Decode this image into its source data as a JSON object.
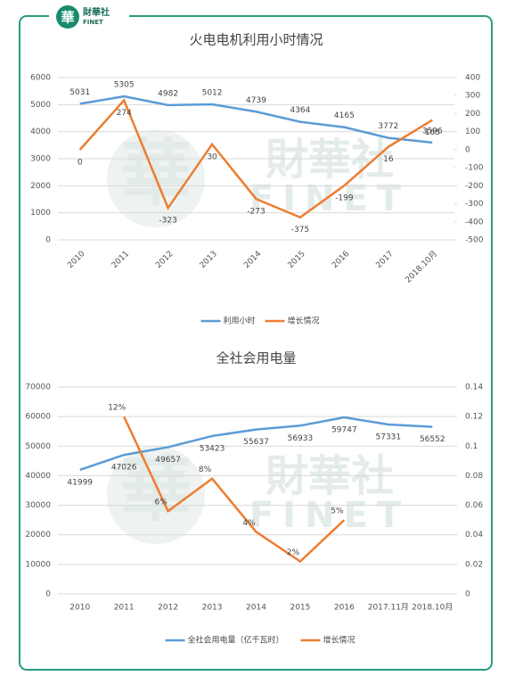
{
  "brand": {
    "mark": "華",
    "name": "財華社",
    "sub": "FINET"
  },
  "chart_data": [
    {
      "type": "line",
      "title": "火电电机利用小时情况",
      "categories": [
        "2010",
        "2011",
        "2012",
        "2013",
        "2014",
        "2015",
        "2016",
        "2017",
        "2018.10月"
      ],
      "series": [
        {
          "name": "利用小时",
          "color": "#5b9bd5",
          "values": [
            5031,
            5305,
            4982,
            5012,
            4739,
            4364,
            4165,
            3772,
            3596
          ]
        },
        {
          "name": "增长情况",
          "color": "#ed7d31",
          "axis": "y2",
          "values": [
            0,
            274,
            -323,
            30,
            -273,
            -375,
            -199,
            16,
            165
          ]
        }
      ],
      "ylim": [
        0,
        6000
      ],
      "yticks": [
        0,
        1000,
        2000,
        3000,
        4000,
        5000,
        6000
      ],
      "y2lim": [
        -500,
        400
      ],
      "y2ticks": [
        -500,
        -400,
        -300,
        -200,
        -100,
        0,
        100,
        200,
        300,
        400
      ],
      "grid": true,
      "legend": "bottom"
    },
    {
      "type": "line",
      "title": "全社会用电量",
      "categories": [
        "2010",
        "2011",
        "2012",
        "2013",
        "2014",
        "2015",
        "2016",
        "2017.11月",
        "2018.10月"
      ],
      "series": [
        {
          "name": "全社会用电量（亿千瓦时）",
          "color": "#5b9bd5",
          "values": [
            41999,
            47026,
            49657,
            53423,
            55637,
            56933,
            59747,
            57331,
            56552
          ]
        },
        {
          "name": "增长情况",
          "color": "#ed7d31",
          "axis": "y2",
          "values": [
            null,
            0.12,
            0.056,
            0.078,
            0.042,
            0.022,
            0.05,
            null,
            null
          ],
          "value_labels": [
            null,
            "12%",
            "6%",
            "8%",
            "4%",
            "2%",
            "5%",
            null,
            null
          ]
        }
      ],
      "ylim": [
        0,
        70000
      ],
      "yticks": [
        0,
        10000,
        20000,
        30000,
        40000,
        50000,
        60000,
        70000
      ],
      "y2lim": [
        0,
        0.14
      ],
      "y2ticks": [
        0,
        0.02,
        0.04,
        0.06,
        0.08,
        0.1,
        0.12,
        0.14
      ],
      "grid": true,
      "legend": "bottom"
    }
  ]
}
